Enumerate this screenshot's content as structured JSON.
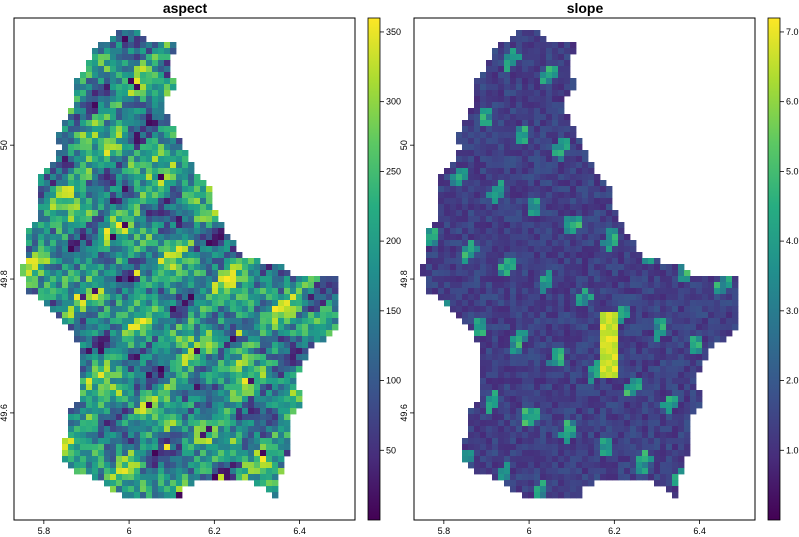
{
  "chart_data": [
    {
      "type": "heatmap",
      "title": "aspect",
      "variable": "aspect",
      "xlim": [
        5.73,
        6.53
      ],
      "ylim": [
        49.44,
        50.19
      ],
      "x_ticks": [
        {
          "value": 5.8,
          "label": "5.8"
        },
        {
          "value": 6.0,
          "label": "6"
        },
        {
          "value": 6.2,
          "label": "6.2"
        },
        {
          "value": 6.4,
          "label": "6.4"
        }
      ],
      "y_ticks": [
        {
          "value": 49.6,
          "label": "49.6"
        },
        {
          "value": 49.8,
          "label": "49.8"
        },
        {
          "value": 50.0,
          "label": "50"
        }
      ],
      "colorbar": {
        "palette": "viridis",
        "range": [
          0,
          360
        ],
        "ticks": [
          {
            "value": 50,
            "label": "50"
          },
          {
            "value": 100,
            "label": "100"
          },
          {
            "value": 150,
            "label": "150"
          },
          {
            "value": 200,
            "label": "200"
          },
          {
            "value": 250,
            "label": "250"
          },
          {
            "value": 300,
            "label": "300"
          },
          {
            "value": 350,
            "label": "350"
          }
        ]
      },
      "colors": {
        "low": "#440154",
        "mid": "#21908d",
        "high": "#fde725"
      }
    },
    {
      "type": "heatmap",
      "title": "slope",
      "variable": "slope",
      "xlim": [
        5.73,
        6.53
      ],
      "ylim": [
        49.44,
        50.19
      ],
      "x_ticks": [
        {
          "value": 5.8,
          "label": "5.8"
        },
        {
          "value": 6.0,
          "label": "6"
        },
        {
          "value": 6.2,
          "label": "6.2"
        },
        {
          "value": 6.4,
          "label": "6.4"
        }
      ],
      "y_ticks": [
        {
          "value": 49.6,
          "label": "49.6"
        },
        {
          "value": 49.8,
          "label": "49.8"
        },
        {
          "value": 50.0,
          "label": "50"
        }
      ],
      "colorbar": {
        "palette": "viridis",
        "range": [
          0,
          7.2
        ],
        "ticks": [
          {
            "value": 1,
            "label": "1.0"
          },
          {
            "value": 2,
            "label": "2.0"
          },
          {
            "value": 3,
            "label": "3.0"
          },
          {
            "value": 4,
            "label": "4.0"
          },
          {
            "value": 5,
            "label": "5.0"
          },
          {
            "value": 6,
            "label": "6.0"
          },
          {
            "value": 7,
            "label": "7.0"
          }
        ]
      },
      "colors": {
        "low": "#440154",
        "mid": "#21908d",
        "high": "#fde725"
      }
    }
  ]
}
